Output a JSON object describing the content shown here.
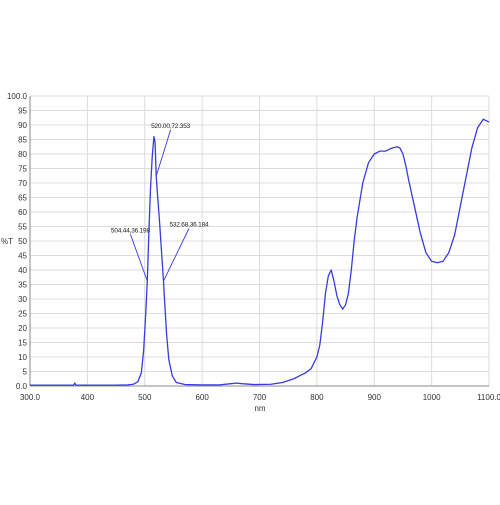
{
  "chart_data": {
    "type": "line",
    "title": "",
    "xlabel": "nm",
    "ylabel": "%T",
    "xlim": [
      300,
      1100
    ],
    "ylim": [
      0,
      100
    ],
    "grid": true,
    "legend": "none",
    "colors": {
      "line": "#3a3ae0",
      "grid": "#dcdcdc",
      "axis": "#888888",
      "annotation": "#3a3ae0"
    },
    "x_ticks": [
      300,
      400,
      500,
      600,
      700,
      800,
      900,
      1000,
      1100
    ],
    "x_tick_labels": [
      "300.0",
      "400",
      "500",
      "600",
      "700",
      "800",
      "900",
      "1000",
      "1100.0"
    ],
    "y_ticks": [
      0,
      5,
      10,
      15,
      20,
      25,
      30,
      35,
      40,
      45,
      50,
      55,
      60,
      65,
      70,
      75,
      80,
      85,
      90,
      95,
      100
    ],
    "y_tick_labels": [
      "0.0",
      "5",
      "10",
      "15",
      "20",
      "25",
      "30",
      "35",
      "40",
      "45",
      "50",
      "55",
      "60",
      "65",
      "70",
      "75",
      "80",
      "85",
      "90",
      "95",
      "100.0"
    ],
    "series": [
      {
        "x": [
          300,
          360,
          376,
          378,
          380,
          400,
          450,
          470,
          480,
          488,
          494,
          498,
          502,
          504.44,
          507,
          510,
          513,
          516,
          518,
          520,
          523,
          526,
          528,
          530,
          532.68,
          535,
          538,
          542,
          548,
          555,
          570,
          600,
          630,
          650,
          660,
          670,
          690,
          720,
          740,
          760,
          770,
          780,
          790,
          800,
          805,
          810,
          815,
          820,
          825,
          830,
          835,
          840,
          845,
          850,
          855,
          860,
          865,
          870,
          880,
          890,
          900,
          910,
          920,
          930,
          940,
          945,
          950,
          955,
          960,
          970,
          980,
          990,
          1000,
          1010,
          1020,
          1030,
          1040,
          1050,
          1060,
          1070,
          1080,
          1090,
          1100
        ],
        "y": [
          0.3,
          0.3,
          0.3,
          1.0,
          0.3,
          0.3,
          0.3,
          0.4,
          0.6,
          1.5,
          4.5,
          12,
          26,
          36.198,
          52,
          68,
          79,
          86,
          84,
          72.353,
          64,
          56,
          50,
          44,
          36.184,
          28,
          18,
          9,
          3.5,
          1.2,
          0.5,
          0.4,
          0.4,
          0.8,
          1.0,
          0.8,
          0.5,
          0.6,
          1.2,
          2.5,
          3.5,
          4.5,
          6,
          10,
          14,
          22,
          32,
          38,
          40,
          36,
          31,
          28,
          26.5,
          28,
          32,
          40,
          50,
          58,
          70,
          77,
          80,
          81,
          81,
          82,
          82.5,
          82,
          80,
          76,
          71,
          62,
          53,
          46,
          43,
          42.5,
          43,
          46,
          52,
          62,
          72,
          82,
          89,
          92,
          91
        ]
      }
    ],
    "annotations": [
      {
        "text": "520.00,72.353",
        "x": 520,
        "y": 72.353,
        "label_x": 545,
        "label_y": 89
      },
      {
        "text": "504.44,36.198",
        "x": 504.44,
        "y": 36.198,
        "label_x": 475,
        "label_y": 53
      },
      {
        "text": "532.68,36.184",
        "x": 532.68,
        "y": 36.184,
        "label_x": 577,
        "label_y": 55
      }
    ]
  }
}
